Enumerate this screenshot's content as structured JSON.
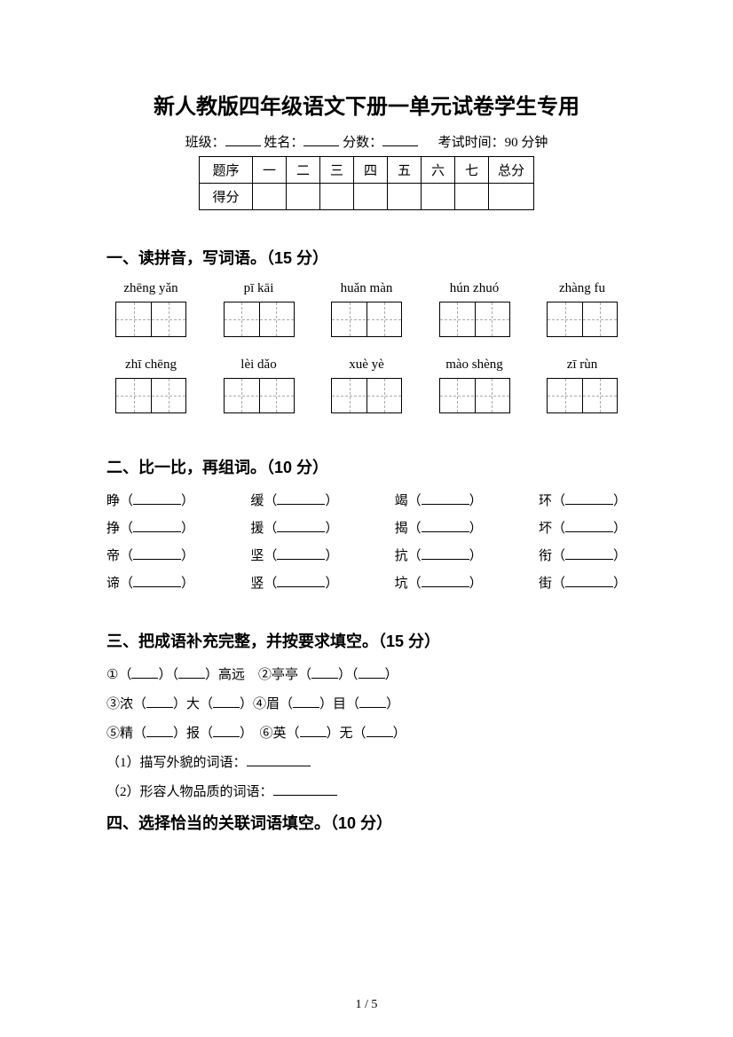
{
  "title": "新人教版四年级语文下册一单元试卷学生专用",
  "info": {
    "class_label": "班级：",
    "name_label": "姓名：",
    "score_label": "分数：",
    "exam_time": "考试时间：90 分钟"
  },
  "score_table": {
    "row1": [
      "题序",
      "一",
      "二",
      "三",
      "四",
      "五",
      "六",
      "七",
      "总分"
    ],
    "row2_label": "得分"
  },
  "section1": {
    "heading": "一、读拼音，写词语。（15 分）",
    "pinyin_row1": [
      "zhēng yǎn",
      "pī kāi",
      "huǎn màn",
      "hún zhuó",
      "zhàng fu"
    ],
    "pinyin_row2": [
      "zhī chēng",
      "lèi dǎo",
      "xuè yè",
      "mào shèng",
      "zī rùn"
    ]
  },
  "section2": {
    "heading": "二、比一比，再组词。（10 分）",
    "rows": [
      [
        "睁",
        "缓",
        "竭",
        "环"
      ],
      [
        "挣",
        "援",
        "揭",
        "坏"
      ],
      [
        "帝",
        "坚",
        "抗",
        "衔"
      ],
      [
        "谛",
        "竖",
        "坑",
        "街"
      ]
    ]
  },
  "section3": {
    "heading": "三、把成语补充完整，并按要求填空。（15 分）",
    "items": [
      {
        "num": "①",
        "before": "（",
        "mid1": "）（",
        "mid2": "）高远　②亭亭（",
        "mid3": "）（",
        "after": "）"
      },
      {
        "num": "③",
        "before": "浓（",
        "mid1": "）大（",
        "mid2": "）④眉（",
        "mid3": "）目（",
        "after": "）"
      },
      {
        "num": "⑤",
        "before": "精（",
        "mid1": "）报（",
        "mid2": "）　⑥英（",
        "mid3": "）无（",
        "after": "）"
      }
    ],
    "q1": "（1）描写外貌的词语：",
    "q2": "（2）形容人物品质的词语："
  },
  "section4": {
    "heading": "四、选择恰当的关联词语填空。（10 分）"
  },
  "page": "1 / 5",
  "colors": {
    "text": "#000000",
    "bg": "#ffffff",
    "dash": "#aaaaaa"
  }
}
